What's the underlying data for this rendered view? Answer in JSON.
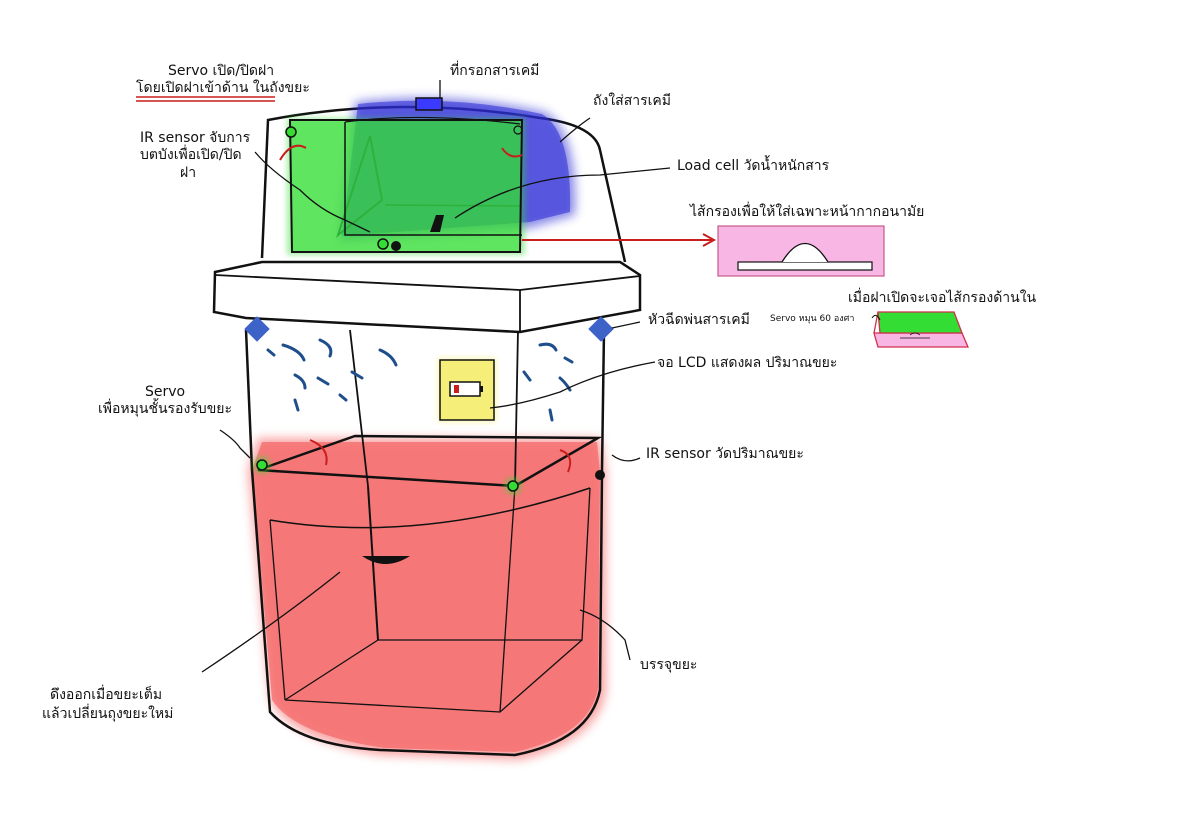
{
  "colors": {
    "lid_green": "#33dd33",
    "tank_blue": "#2b2bd6",
    "bin_red": "#f45a5a",
    "filter_pink": "#f7b6e4",
    "lcd_yellow": "#f5ef7a",
    "arrow_red": "#c81e1e",
    "nozzle_blue": "#3d63c9",
    "spray_blue": "#1f4e8c"
  },
  "labels": {
    "servo_lid_line1": "Servo เปิด/ปิดฝา",
    "servo_lid_line2": "โดยเปิดฝาเข้าด้าน ในถังขยะ",
    "chem_inlet": "ที่กรอกสารเคมี",
    "chem_tank": "ถังใส่สารเคมี",
    "ir_lid_line1": "IR sensor จับการ",
    "ir_lid_line2": "บตบังเพื่อเปิด/ปิด",
    "ir_lid_line3": "ฝา",
    "load_cell": "Load cell วัดน้ำหนักสาร",
    "filter_title": "ไส้กรองเพื่อให้ใส่เฉพาะหน้ากากอนามัย",
    "filter_open": "เมื่อฝาเปิดจะเจอไส้กรองด้านใน",
    "servo_60": "Servo หมุน 60 องศา",
    "spray_nozzle": "หัวฉีดพ่นสารเคมี",
    "lcd_display": "จอ LCD แสดงผล ปริมาณขยะ",
    "servo_tray_line1": "Servo",
    "servo_tray_line2": "เพื่อหมุนชั้นรองรับขยะ",
    "ir_volume": "IR sensor วัดปริมาณขยะ",
    "pull_out_line1": "ดึงออกเมื่อขยะเต็ม",
    "pull_out_line2": "แล้วเปลี่ยนถุงขยะใหม่",
    "contain": "บรรจุขยะ"
  }
}
